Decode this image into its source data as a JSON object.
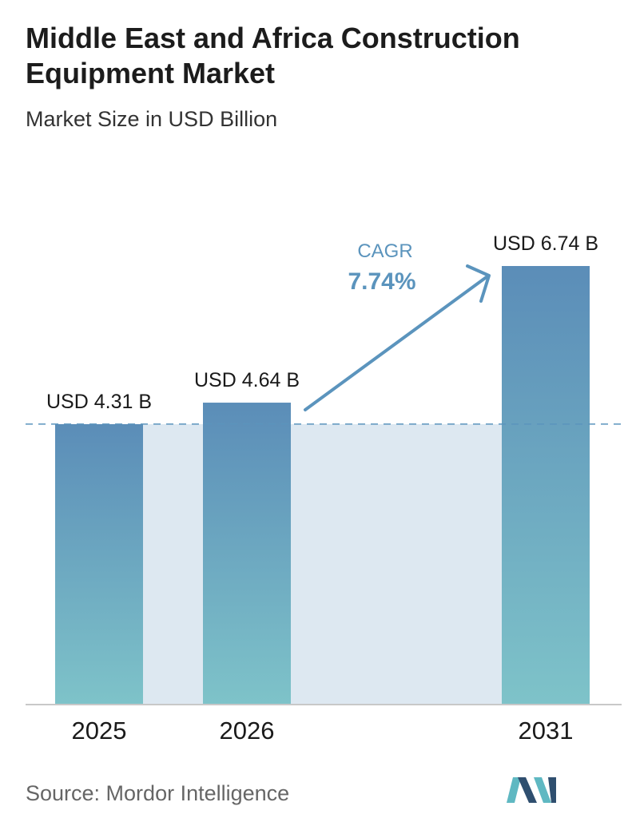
{
  "header": {
    "title": "Middle East and Africa Construction Equipment Market",
    "subtitle": "Market Size in USD Billion"
  },
  "annotation": {
    "cagr_label": "CAGR",
    "cagr_value": "7.74%"
  },
  "footer": {
    "source": "Source:  Mordor Intelligence"
  },
  "colors": {
    "bar_top": "#5b8db8",
    "bar_bottom": "#7ec3c9",
    "band": "#dde8f1",
    "accent": "#5b94bd",
    "logo_dark": "#2f4f6f",
    "logo_light": "#5fb8c2"
  },
  "chart_data": {
    "type": "bar",
    "categories": [
      "2025",
      "2026",
      "2031"
    ],
    "values": [
      4.31,
      4.64,
      6.74
    ],
    "value_labels": [
      "USD 4.31 B",
      "USD 4.64 B",
      "USD 6.74 B"
    ],
    "title": "Middle East and Africa Construction Equipment Market",
    "subtitle": "Market Size in USD Billion",
    "xlabel": "",
    "ylabel": "",
    "ylim": [
      0,
      6.74
    ],
    "grid": false,
    "reference_line": 4.31,
    "annotations": [
      "CAGR",
      "7.74%"
    ]
  }
}
